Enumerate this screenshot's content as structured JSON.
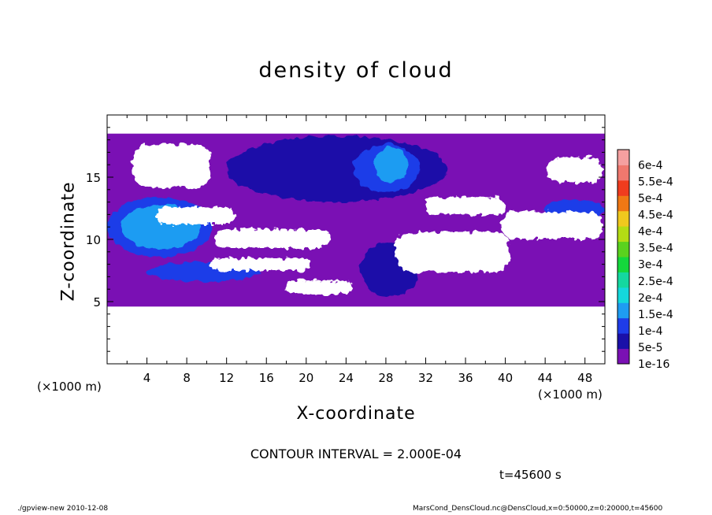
{
  "chart_data": {
    "type": "heatmap",
    "title": "density of cloud",
    "xlabel": "X-coordinate",
    "ylabel": "Z-coordinate",
    "x_unit": "(×1000 m)",
    "xlim": [
      0,
      50
    ],
    "ylim": [
      0,
      20
    ],
    "x_ticks": [
      4,
      8,
      12,
      16,
      20,
      24,
      28,
      32,
      36,
      40,
      44,
      48
    ],
    "y_ticks": [
      5,
      10,
      15
    ],
    "colorbar": {
      "levels": [
        "1e-16",
        "5e-5",
        "1e-4",
        "1.5e-4",
        "2e-4",
        "2.5e-4",
        "3e-4",
        "3.5e-4",
        "4e-4",
        "4.5e-4",
        "5e-4",
        "5.5e-4",
        "6e-4"
      ],
      "colors": [
        "#7a10b4",
        "#1a10a8",
        "#1e3ce8",
        "#1e9cf2",
        "#14d8dc",
        "#14d8a0",
        "#14d83c",
        "#5ad21e",
        "#b4dc14",
        "#f0c81e",
        "#f07814",
        "#f03c1e",
        "#f0786e",
        "#f5a0a0"
      ]
    },
    "cloud_layer_z": [
      4.6,
      18.5
    ],
    "clear_regions": [
      {
        "x": [
          2.6,
          10.4
        ],
        "z": [
          14.2,
          17.6
        ]
      },
      {
        "x": [
          44.2,
          49.8
        ],
        "z": [
          14.6,
          16.6
        ]
      },
      {
        "x": [
          5.0,
          12.8
        ],
        "z": [
          11.2,
          12.6
        ]
      },
      {
        "x": [
          10.8,
          22.4
        ],
        "z": [
          9.3,
          10.8
        ]
      },
      {
        "x": [
          10.4,
          20.4
        ],
        "z": [
          7.5,
          8.5
        ]
      },
      {
        "x": [
          18.0,
          24.6
        ],
        "z": [
          5.6,
          6.7
        ]
      },
      {
        "x": [
          29.0,
          40.4
        ],
        "z": [
          7.4,
          10.6
        ]
      },
      {
        "x": [
          32.0,
          40.0
        ],
        "z": [
          12.0,
          13.4
        ]
      },
      {
        "x": [
          39.6,
          49.8
        ],
        "z": [
          10.0,
          12.2
        ]
      }
    ],
    "dense_regions": [
      {
        "x": [
          12.0,
          34.2
        ],
        "z": [
          13.0,
          18.3
        ],
        "level": "5e-5"
      },
      {
        "x": [
          24.8,
          31.4
        ],
        "z": [
          13.8,
          17.6
        ],
        "level": "1e-4"
      },
      {
        "x": [
          26.8,
          30.2
        ],
        "z": [
          14.6,
          17.4
        ],
        "level": "1.5e-4"
      },
      {
        "x": [
          0.0,
          10.6
        ],
        "z": [
          8.6,
          13.4
        ],
        "level": "1e-4"
      },
      {
        "x": [
          1.4,
          9.4
        ],
        "z": [
          9.2,
          12.8
        ],
        "level": "1.5e-4"
      },
      {
        "x": [
          43.8,
          50.0
        ],
        "z": [
          11.6,
          13.2
        ],
        "level": "1e-4"
      },
      {
        "x": [
          4.0,
          15.4
        ],
        "z": [
          6.6,
          8.2
        ],
        "level": "1e-4"
      },
      {
        "x": [
          25.4,
          31.4
        ],
        "z": [
          5.4,
          9.8
        ],
        "level": "5e-5"
      }
    ]
  },
  "labels": {
    "title": "density of cloud",
    "xlabel": "X-coordinate",
    "ylabel": "Z-coordinate",
    "x_unit_left": "(×1000 m)",
    "x_unit_right": "(×1000 m)",
    "contour_interval": "CONTOUR INTERVAL = 2.000E-04",
    "time": "t=45600 s",
    "footer_left": "./gpview-new   2010-12-08",
    "footer_right": "MarsCond_DensCloud.nc@DensCloud,x=0:50000,z=0:20000,t=45600"
  }
}
